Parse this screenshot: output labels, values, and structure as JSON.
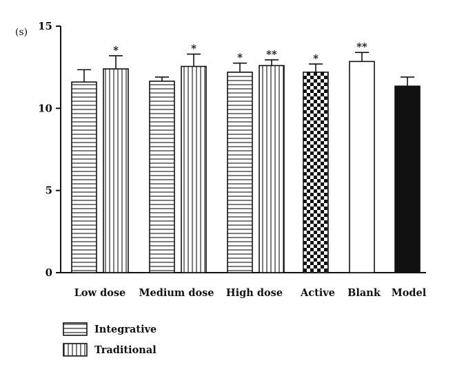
{
  "chart_data": {
    "type": "bar",
    "ylabel": "(s)",
    "ylim": [
      0,
      15
    ],
    "yticks": [
      "0",
      "5",
      "10",
      "15"
    ],
    "categories": [
      "Low dose",
      "Medium dose",
      "High dose",
      "Active",
      "Blank",
      "Model"
    ],
    "bars": [
      {
        "category": "Low dose",
        "series": "Integrative",
        "value": 11.6,
        "error": 0.75,
        "sig": ""
      },
      {
        "category": "Low dose",
        "series": "Traditional",
        "value": 12.4,
        "error": 0.8,
        "sig": "*"
      },
      {
        "category": "Medium dose",
        "series": "Integrative",
        "value": 11.65,
        "error": 0.25,
        "sig": ""
      },
      {
        "category": "Medium dose",
        "series": "Traditional",
        "value": 12.55,
        "error": 0.75,
        "sig": "*"
      },
      {
        "category": "High dose",
        "series": "Integrative",
        "value": 12.2,
        "error": 0.55,
        "sig": "*"
      },
      {
        "category": "High dose",
        "series": "Traditional",
        "value": 12.6,
        "error": 0.35,
        "sig": "**"
      },
      {
        "category": "Active",
        "series": "",
        "value": 12.2,
        "error": 0.5,
        "sig": "*"
      },
      {
        "category": "Blank",
        "series": "",
        "value": 12.85,
        "error": 0.55,
        "sig": "**"
      },
      {
        "category": "Model",
        "series": "",
        "value": 11.35,
        "error": 0.55,
        "sig": ""
      }
    ],
    "legend": [
      {
        "name": "Integrative",
        "pattern": "horizontal-stripes"
      },
      {
        "name": "Traditional",
        "pattern": "vertical-stripes"
      }
    ],
    "patterns": {
      "Active": "checkerboard",
      "Blank": "white",
      "Model": "solid-black"
    },
    "colors": {
      "ink": "#111111",
      "background": "#ffffff"
    },
    "grid": false,
    "legend_position": "bottom-left"
  }
}
